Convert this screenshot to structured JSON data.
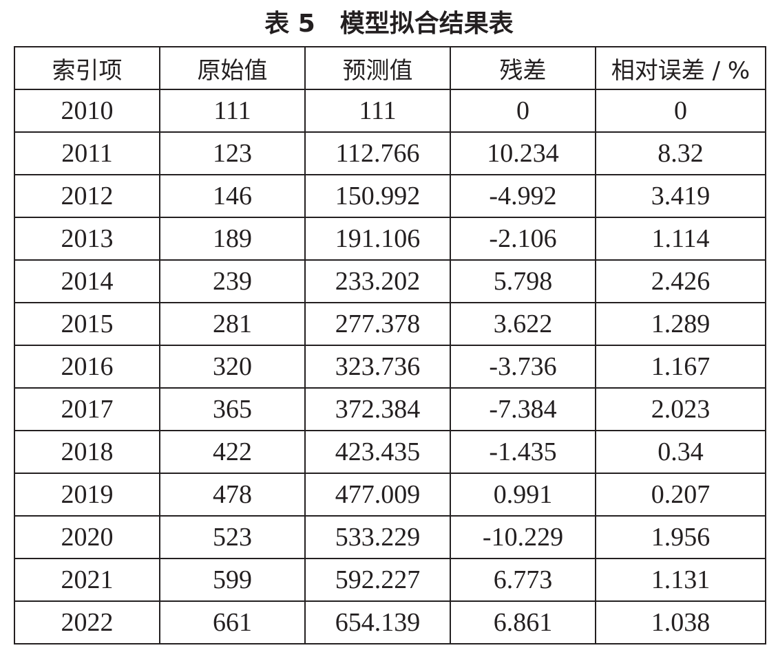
{
  "caption": "表 5　模型拟合结果表",
  "table": {
    "columns": [
      "索引项",
      "原始值",
      "预测值",
      "残差",
      "相对误差 / %"
    ],
    "rows": [
      [
        "2010",
        "111",
        "111",
        "0",
        "0"
      ],
      [
        "2011",
        "123",
        "112.766",
        "10.234",
        "8.32"
      ],
      [
        "2012",
        "146",
        "150.992",
        "-4.992",
        "3.419"
      ],
      [
        "2013",
        "189",
        "191.106",
        "-2.106",
        "1.114"
      ],
      [
        "2014",
        "239",
        "233.202",
        "5.798",
        "2.426"
      ],
      [
        "2015",
        "281",
        "277.378",
        "3.622",
        "1.289"
      ],
      [
        "2016",
        "320",
        "323.736",
        "-3.736",
        "1.167"
      ],
      [
        "2017",
        "365",
        "372.384",
        "-7.384",
        "2.023"
      ],
      [
        "2018",
        "422",
        "423.435",
        "-1.435",
        "0.34"
      ],
      [
        "2019",
        "478",
        "477.009",
        "0.991",
        "0.207"
      ],
      [
        "2020",
        "523",
        "533.229",
        "-10.229",
        "1.956"
      ],
      [
        "2021",
        "599",
        "592.227",
        "6.773",
        "1.131"
      ],
      [
        "2022",
        "661",
        "654.139",
        "6.861",
        "1.038"
      ]
    ]
  }
}
